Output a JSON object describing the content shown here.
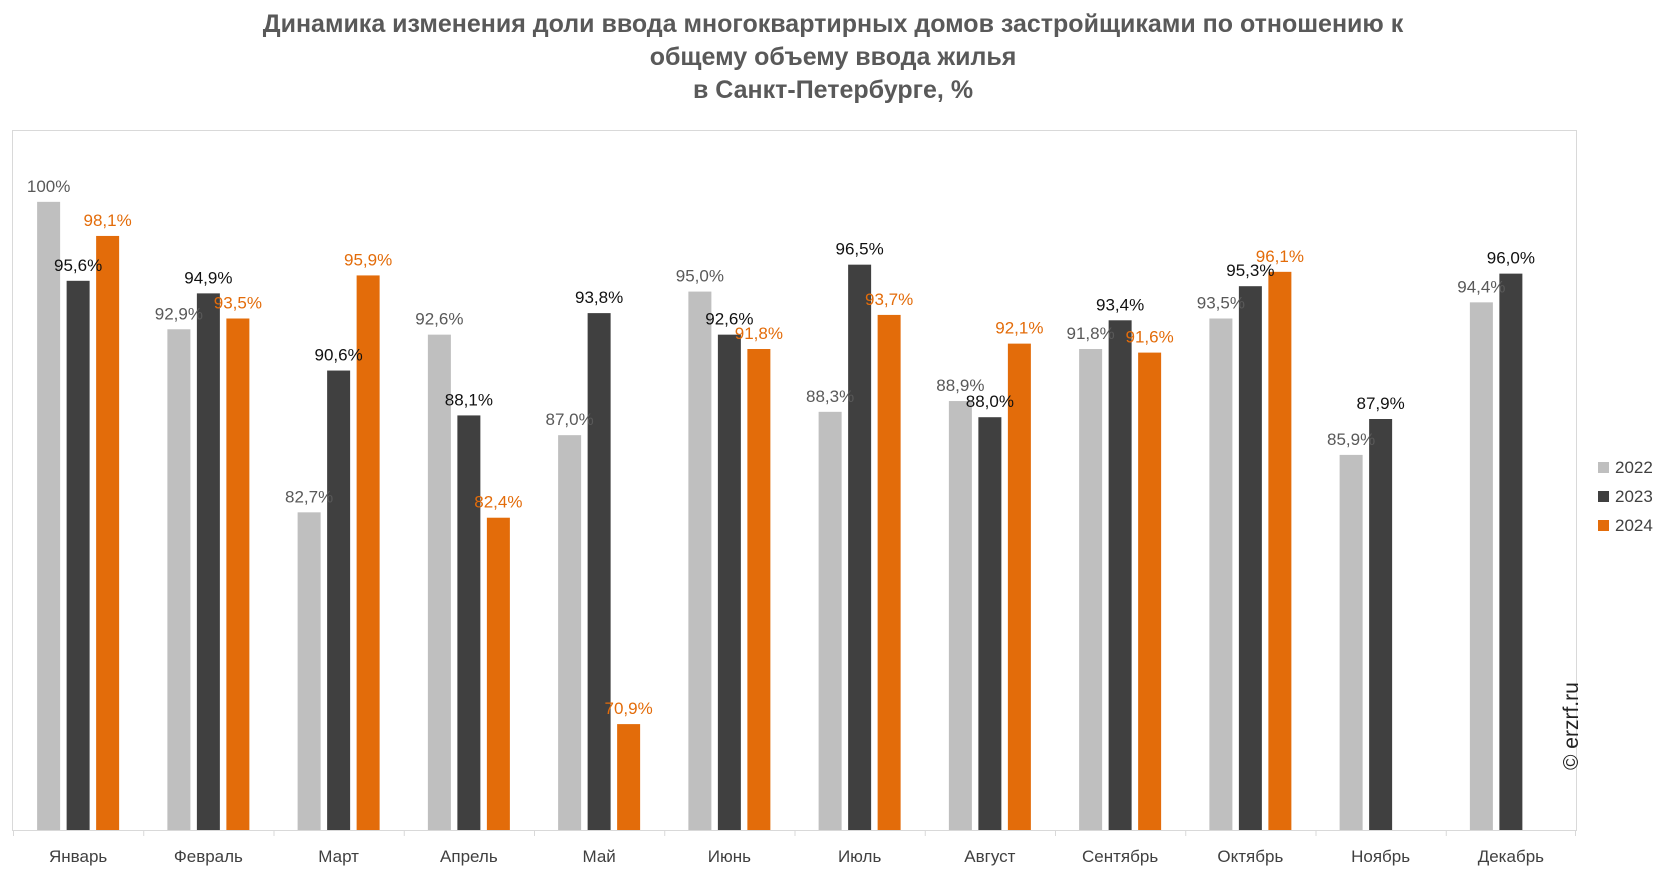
{
  "title_lines": [
    "Динамика изменения доли ввода многоквартирных домов застройщиками по отношению к",
    "общему объему ввода жилья",
    "в Санкт-Петербурге, %"
  ],
  "watermark": "© erzrf.ru",
  "colors": {
    "2022": "#bfbfbf",
    "2023": "#404040",
    "2024": "#e36c0a"
  },
  "chart_data": {
    "type": "bar",
    "title": "Динамика изменения доли ввода многоквартирных домов застройщиками по отношению к общему объему ввода жилья в Санкт-Петербурге, %",
    "xlabel": "",
    "ylabel": "",
    "ylim": [
      65,
      103
    ],
    "grid": false,
    "legend_position": "right",
    "categories": [
      "Январь",
      "Февраль",
      "Март",
      "Апрель",
      "Май",
      "Июнь",
      "Июль",
      "Август",
      "Сентябрь",
      "Октябрь",
      "Ноябрь",
      "Декабрь"
    ],
    "series": [
      {
        "name": "2022",
        "values": [
          100,
          92.9,
          82.7,
          92.6,
          87.0,
          95.0,
          88.3,
          88.9,
          91.8,
          93.5,
          85.9,
          94.4
        ],
        "labels": [
          "100%",
          "92,9%",
          "82,7%",
          "92,6%",
          "87,0%",
          "95,0%",
          "88,3%",
          "88,9%",
          "91,8%",
          "93,5%",
          "85,9%",
          "94,4%"
        ]
      },
      {
        "name": "2023",
        "values": [
          95.6,
          94.9,
          90.6,
          88.1,
          93.8,
          92.6,
          96.5,
          88.0,
          93.4,
          95.3,
          87.9,
          96.0
        ],
        "labels": [
          "95,6%",
          "94,9%",
          "90,6%",
          "88,1%",
          "93,8%",
          "92,6%",
          "96,5%",
          "88,0%",
          "93,4%",
          "95,3%",
          "87,9%",
          "96,0%"
        ]
      },
      {
        "name": "2024",
        "values": [
          98.1,
          93.5,
          95.9,
          82.4,
          70.9,
          91.8,
          93.7,
          92.1,
          91.6,
          96.1,
          null,
          null
        ],
        "labels": [
          "98,1%",
          "93,5%",
          "95,9%",
          "82,4%",
          "70,9%",
          "91,8%",
          "93,7%",
          "92,1%",
          "91,6%",
          "96,1%",
          null,
          null
        ]
      }
    ]
  }
}
